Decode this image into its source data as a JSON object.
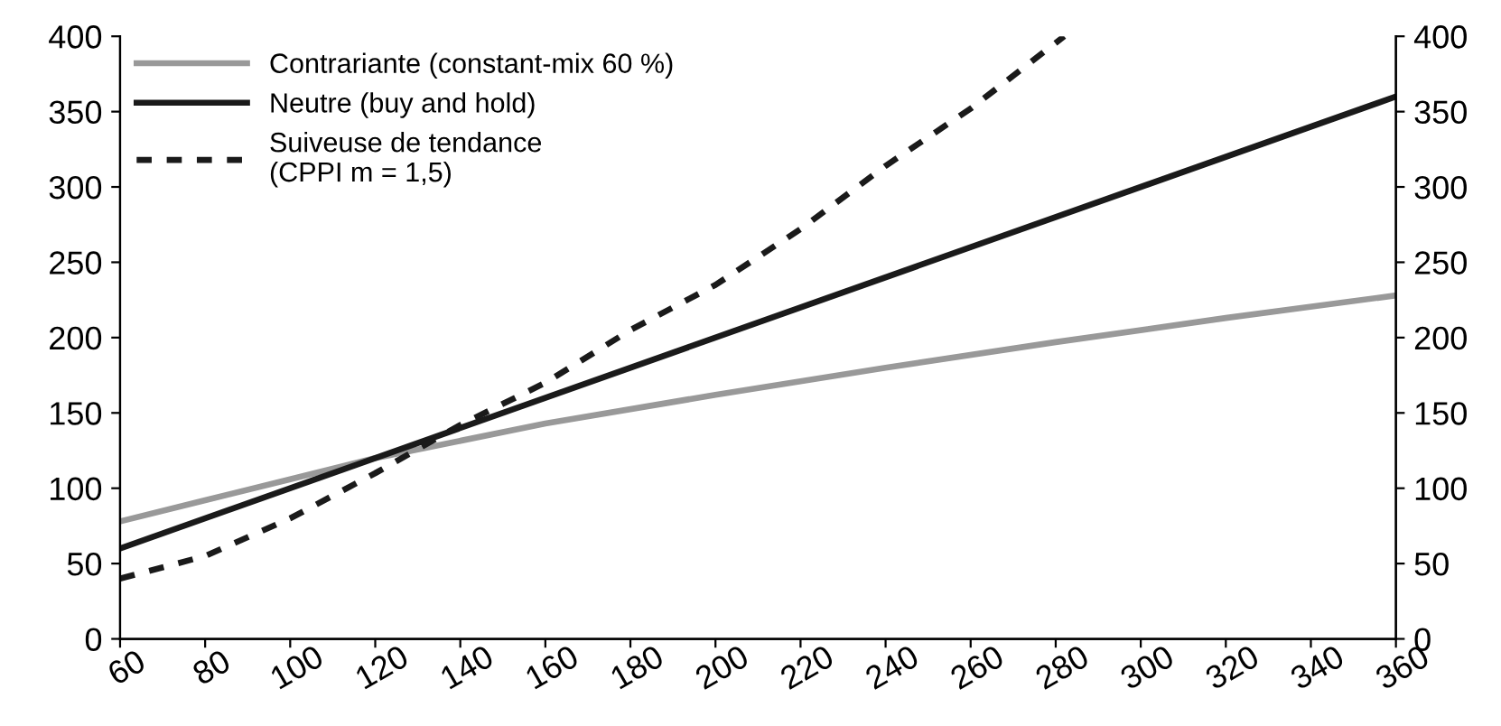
{
  "chart_data": {
    "type": "line",
    "x": [
      60,
      360
    ],
    "series": [
      {
        "name": "Contrariante (constant-mix 60 %)",
        "color": "#999999",
        "x": [
          60,
          80,
          100,
          120,
          160,
          200,
          240,
          280,
          320,
          360
        ],
        "values": [
          78,
          92,
          106,
          120,
          143,
          162,
          180,
          197,
          213,
          228
        ],
        "line_style": "solid"
      },
      {
        "name": "Neutre (buy and hold)",
        "color": "#1a1a1a",
        "values": [
          60,
          360
        ],
        "line_style": "solid"
      },
      {
        "name": "Suiveuse de tendance\n(CPPI m = 1,5)",
        "color": "#1a1a1a",
        "line_style": "dotted",
        "x": [
          60,
          80,
          100,
          120,
          140,
          160,
          180,
          200,
          220,
          240,
          260,
          282
        ],
        "values": [
          40,
          55,
          80,
          110,
          142,
          170,
          205,
          235,
          272,
          314,
          352,
          400
        ]
      }
    ],
    "xlim": [
      60,
      360
    ],
    "xticks": [
      60,
      80,
      100,
      120,
      140,
      160,
      180,
      200,
      220,
      240,
      260,
      280,
      300,
      320,
      340,
      360
    ],
    "ylim": [
      0,
      400
    ],
    "yticks": [
      0,
      50,
      100,
      150,
      200,
      250,
      300,
      350,
      400
    ],
    "y2lim": [
      0,
      400
    ],
    "y2ticks": [
      0,
      50,
      100,
      150,
      200,
      250,
      300,
      350,
      400
    ],
    "grid": false,
    "legend": "top left",
    "marker": "none"
  }
}
